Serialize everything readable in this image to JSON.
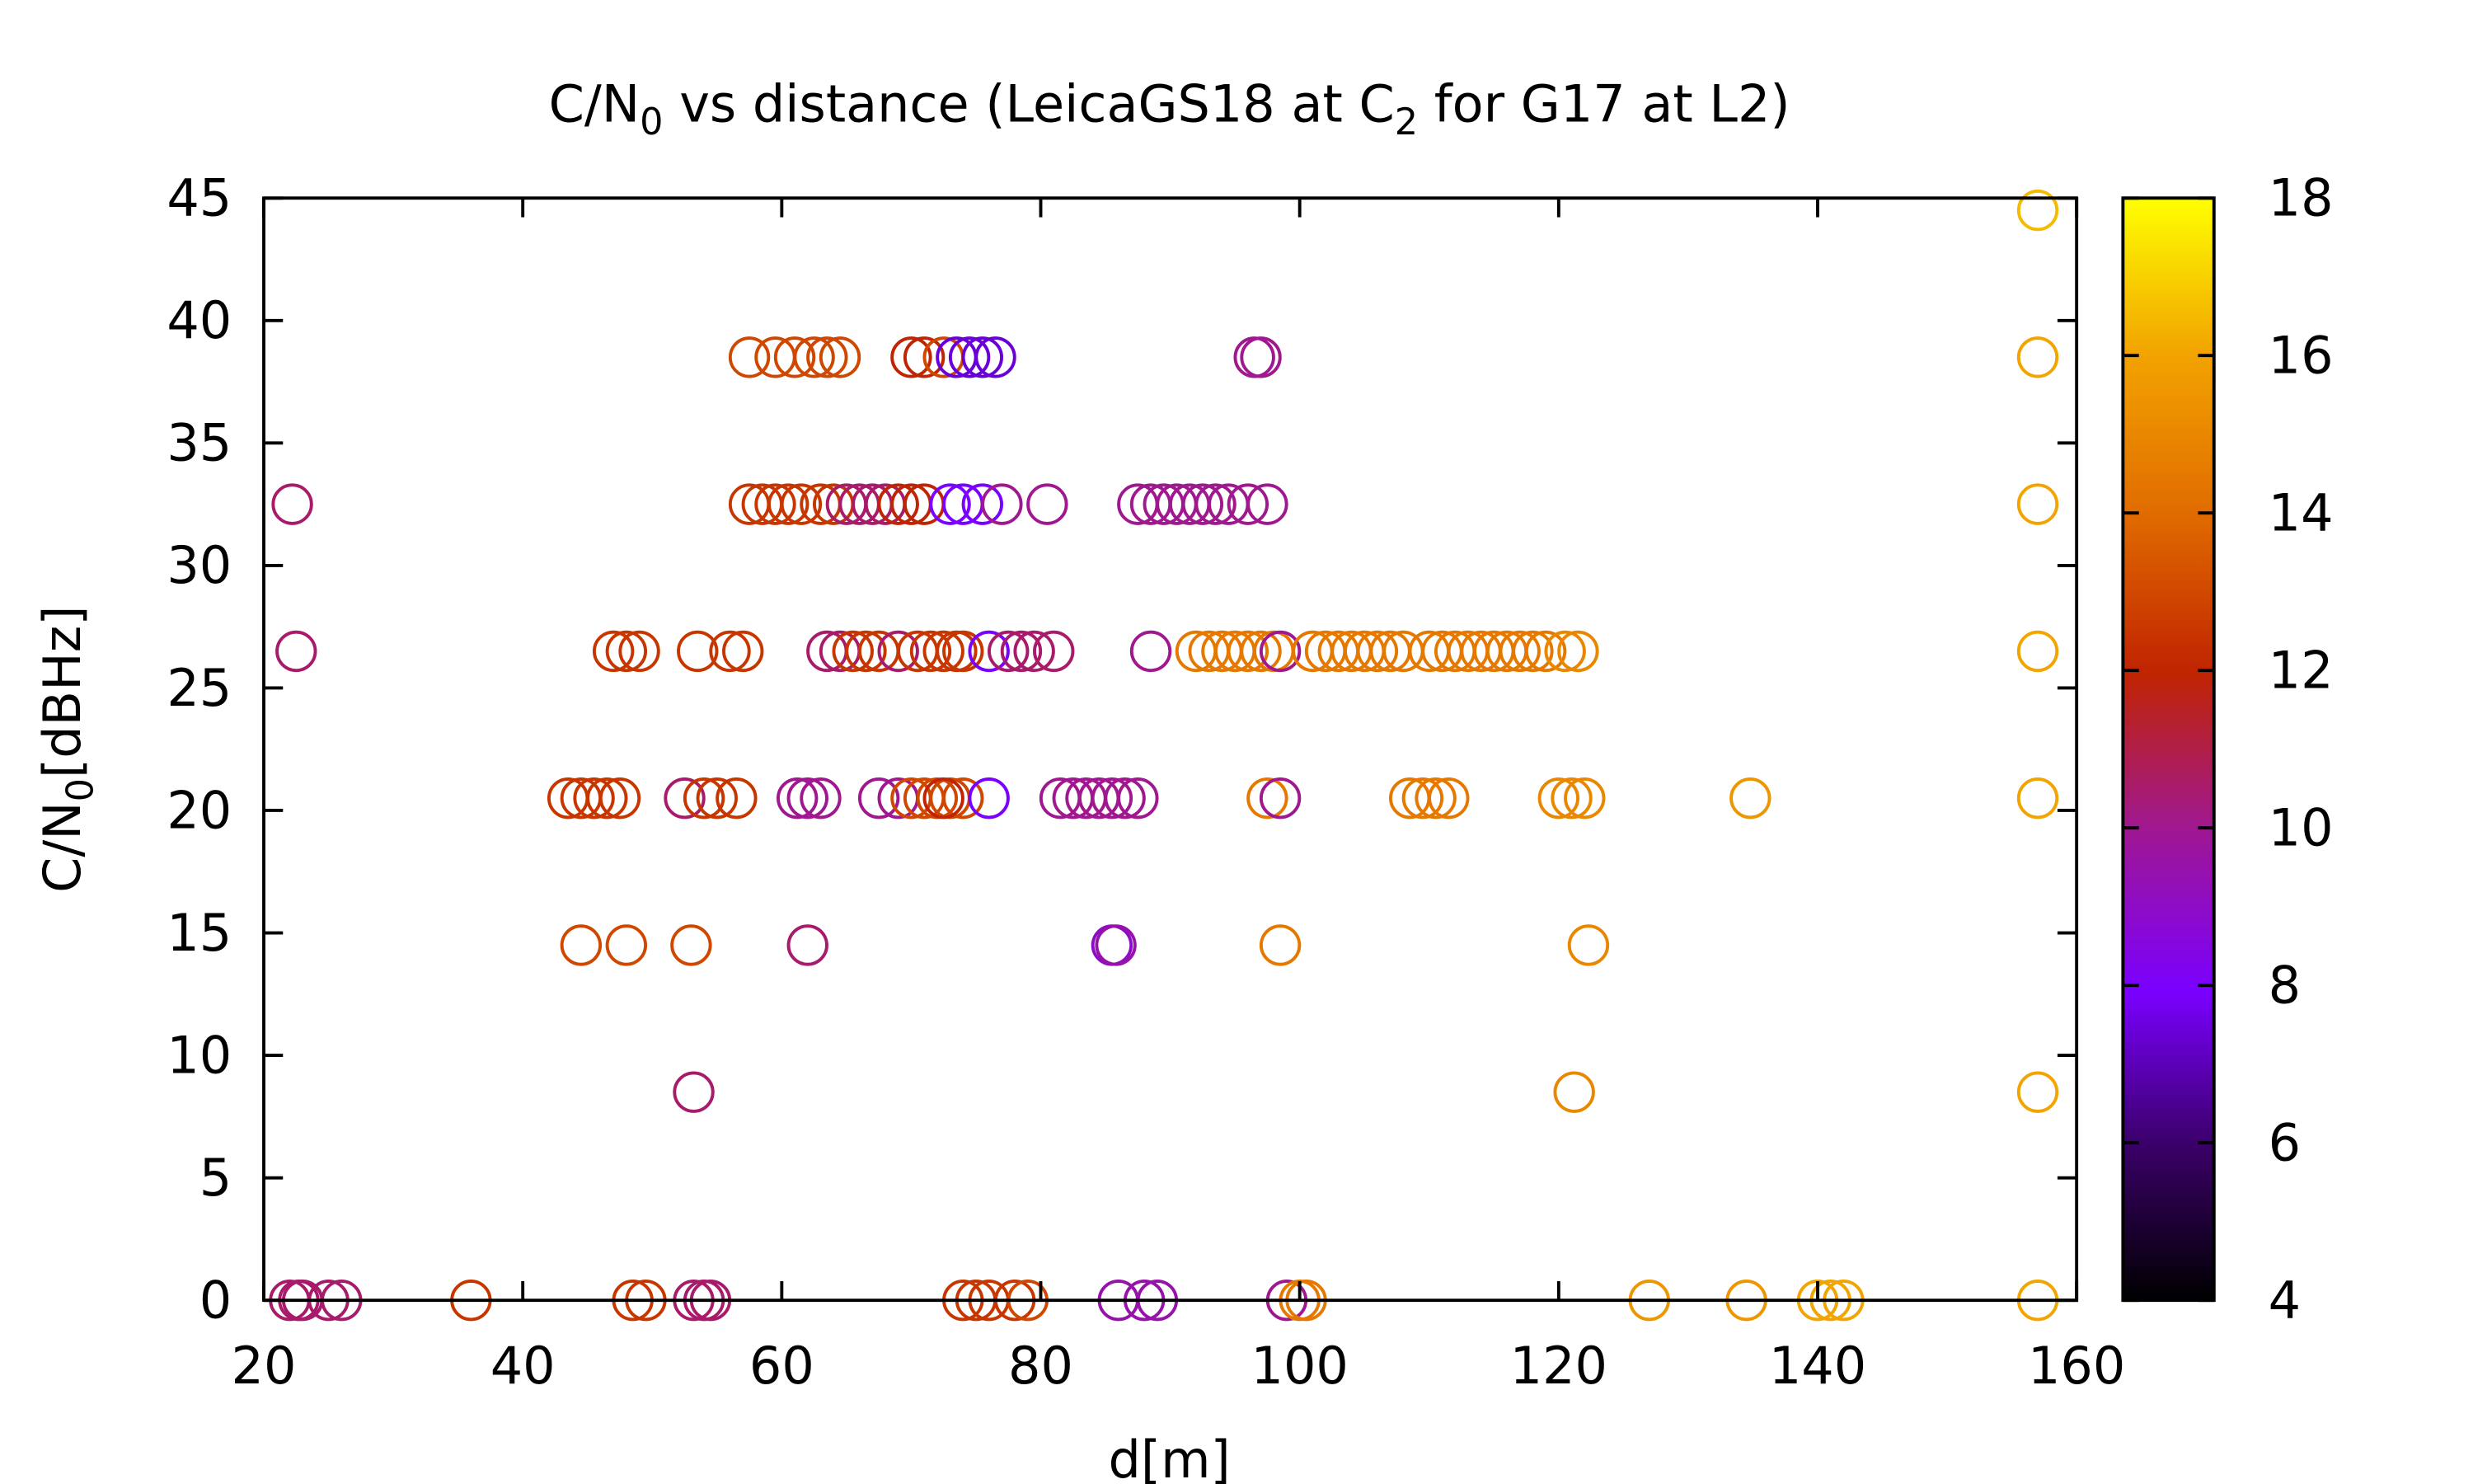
{
  "chart_data": {
    "type": "scatter",
    "title": "C/N0 vs distance (LeicaGS18 at C2 for G17 at L2)",
    "title_parts": {
      "pre": "C/N",
      "sub0": "0",
      "mid": " vs distance (LeicaGS18 at C",
      "sub2": "2",
      "post": " for G17 at L2)"
    },
    "xlabel": "d[m]",
    "ylabel_parts": {
      "pre": "C/N",
      "sub": "0",
      "post": "[dBHz]"
    },
    "xlim": [
      20,
      160
    ],
    "ylim": [
      0,
      45
    ],
    "xticks": [
      20,
      40,
      60,
      80,
      100,
      120,
      140,
      160
    ],
    "yticks": [
      0,
      5,
      10,
      15,
      20,
      25,
      30,
      35,
      40,
      45
    ],
    "colorbar": {
      "min": 4,
      "max": 18,
      "ticks": [
        4,
        6,
        8,
        10,
        12,
        14,
        16,
        18
      ],
      "palette": "black-blue-purple-red-orange-yellow"
    },
    "grid": false,
    "legend": "none",
    "points": [
      [
        22,
        0,
        10.5
      ],
      [
        22.7,
        0,
        10.5
      ],
      [
        23,
        0,
        10.5
      ],
      [
        25,
        0,
        10.5
      ],
      [
        26,
        0,
        10.5
      ],
      [
        36,
        0,
        12.5
      ],
      [
        48.5,
        0,
        12.5
      ],
      [
        49.5,
        0,
        12.5
      ],
      [
        53.2,
        0,
        10.5
      ],
      [
        54,
        0,
        10.5
      ],
      [
        54.5,
        0,
        10.5
      ],
      [
        74,
        0,
        12.5
      ],
      [
        75,
        0,
        12.5
      ],
      [
        76,
        0,
        12.5
      ],
      [
        78,
        0,
        12.5
      ],
      [
        79,
        0,
        13
      ],
      [
        86,
        0,
        9.5
      ],
      [
        88,
        0,
        9.5
      ],
      [
        89,
        0,
        9.5
      ],
      [
        99,
        0,
        10
      ],
      [
        100,
        0,
        14.5
      ],
      [
        100.5,
        0,
        14.5
      ],
      [
        127,
        0,
        15.5
      ],
      [
        134.5,
        0,
        15.5
      ],
      [
        140,
        0,
        16
      ],
      [
        141,
        0,
        16
      ],
      [
        142,
        0,
        16
      ],
      [
        157,
        0,
        16
      ],
      [
        53.2,
        8.5,
        10.5
      ],
      [
        121.2,
        8.5,
        15
      ],
      [
        157,
        8.5,
        16
      ],
      [
        44.5,
        14.5,
        13
      ],
      [
        48,
        14.5,
        13
      ],
      [
        53,
        14.5,
        13
      ],
      [
        62,
        14.5,
        10.5
      ],
      [
        85.5,
        14.5,
        9
      ],
      [
        85.8,
        14.5,
        9.5
      ],
      [
        98.5,
        14.5,
        14.5
      ],
      [
        122.3,
        14.5,
        15
      ],
      [
        43.5,
        20.5,
        12.5
      ],
      [
        44.5,
        20.5,
        12.5
      ],
      [
        45.5,
        20.5,
        12.5
      ],
      [
        46.5,
        20.5,
        12.5
      ],
      [
        47.5,
        20.5,
        12.5
      ],
      [
        52.5,
        20.5,
        10.5
      ],
      [
        54,
        20.5,
        12.5
      ],
      [
        55,
        20.5,
        12.5
      ],
      [
        56.5,
        20.5,
        12.5
      ],
      [
        61.2,
        20.5,
        10
      ],
      [
        62,
        20.5,
        10
      ],
      [
        63,
        20.5,
        10
      ],
      [
        67.5,
        20.5,
        10
      ],
      [
        69,
        20.5,
        10
      ],
      [
        70,
        20.5,
        13
      ],
      [
        71,
        20.5,
        13
      ],
      [
        72,
        20.5,
        13
      ],
      [
        73,
        20.5,
        13
      ],
      [
        74,
        20.5,
        13
      ],
      [
        72.5,
        20.5,
        12
      ],
      [
        76,
        20.5,
        8
      ],
      [
        81.5,
        20.5,
        10
      ],
      [
        82.5,
        20.5,
        10
      ],
      [
        83.5,
        20.5,
        10
      ],
      [
        84.5,
        20.5,
        10
      ],
      [
        85.5,
        20.5,
        10
      ],
      [
        86.5,
        20.5,
        10
      ],
      [
        87.5,
        20.5,
        10
      ],
      [
        97.5,
        20.5,
        14.5
      ],
      [
        98.5,
        20.5,
        10
      ],
      [
        108.5,
        20.5,
        14.5
      ],
      [
        109.5,
        20.5,
        14.5
      ],
      [
        110.5,
        20.5,
        14.5
      ],
      [
        111.5,
        20.5,
        14.5
      ],
      [
        120,
        20.5,
        15
      ],
      [
        121,
        20.5,
        15
      ],
      [
        122,
        20.5,
        15
      ],
      [
        134.8,
        20.5,
        15.5
      ],
      [
        157,
        20.5,
        16
      ],
      [
        22.5,
        26.5,
        10.5
      ],
      [
        47,
        26.5,
        12.5
      ],
      [
        48,
        26.5,
        12.5
      ],
      [
        49,
        26.5,
        12.5
      ],
      [
        53.5,
        26.5,
        12.5
      ],
      [
        56,
        26.5,
        12.5
      ],
      [
        57,
        26.5,
        12.5
      ],
      [
        63.5,
        26.5,
        10.5
      ],
      [
        64.5,
        26.5,
        10.5
      ],
      [
        65.5,
        26.5,
        12.5
      ],
      [
        66.5,
        26.5,
        12.5
      ],
      [
        67.5,
        26.5,
        12.5
      ],
      [
        69,
        26.5,
        10.5
      ],
      [
        70.5,
        26.5,
        12.5
      ],
      [
        71.5,
        26.5,
        12.5
      ],
      [
        72.5,
        26.5,
        12.5
      ],
      [
        73.5,
        26.5,
        12.5
      ],
      [
        74,
        26.5,
        12.5
      ],
      [
        76,
        26.5,
        8
      ],
      [
        77.5,
        26.5,
        10.5
      ],
      [
        78.5,
        26.5,
        10.5
      ],
      [
        79.5,
        26.5,
        10.5
      ],
      [
        81,
        26.5,
        10.5
      ],
      [
        88.5,
        26.5,
        10
      ],
      [
        92,
        26.5,
        14.5
      ],
      [
        93,
        26.5,
        14.5
      ],
      [
        94,
        26.5,
        14.5
      ],
      [
        95,
        26.5,
        14.5
      ],
      [
        96,
        26.5,
        14.5
      ],
      [
        97,
        26.5,
        14.5
      ],
      [
        98,
        26.5,
        14.5
      ],
      [
        98.5,
        26.5,
        10
      ],
      [
        101,
        26.5,
        14.5
      ],
      [
        102,
        26.5,
        14.5
      ],
      [
        103,
        26.5,
        14.5
      ],
      [
        104,
        26.5,
        14.5
      ],
      [
        105,
        26.5,
        14.5
      ],
      [
        106,
        26.5,
        14.5
      ],
      [
        107,
        26.5,
        14.5
      ],
      [
        108,
        26.5,
        14.5
      ],
      [
        110,
        26.5,
        14.5
      ],
      [
        111,
        26.5,
        14.5
      ],
      [
        112,
        26.5,
        14.5
      ],
      [
        113,
        26.5,
        14.5
      ],
      [
        114,
        26.5,
        14.5
      ],
      [
        115,
        26.5,
        14.5
      ],
      [
        116,
        26.5,
        14.5
      ],
      [
        117,
        26.5,
        14.5
      ],
      [
        118,
        26.5,
        14.5
      ],
      [
        119,
        26.5,
        14.5
      ],
      [
        120.5,
        26.5,
        15
      ],
      [
        121.5,
        26.5,
        15
      ],
      [
        157,
        26.5,
        16
      ],
      [
        22.2,
        32.5,
        10.5
      ],
      [
        57.5,
        32.5,
        12.5
      ],
      [
        58.5,
        32.5,
        12.5
      ],
      [
        59.5,
        32.5,
        12.5
      ],
      [
        60.5,
        32.5,
        12.5
      ],
      [
        61.5,
        32.5,
        12.5
      ],
      [
        63,
        32.5,
        12.5
      ],
      [
        64,
        32.5,
        12.5
      ],
      [
        65,
        32.5,
        10.5
      ],
      [
        66,
        32.5,
        10.5
      ],
      [
        67,
        32.5,
        10.5
      ],
      [
        68,
        32.5,
        10.5
      ],
      [
        69,
        32.5,
        12
      ],
      [
        70,
        32.5,
        12
      ],
      [
        71,
        32.5,
        12
      ],
      [
        73,
        32.5,
        8
      ],
      [
        74,
        32.5,
        8
      ],
      [
        75.5,
        32.5,
        8
      ],
      [
        77,
        32.5,
        10
      ],
      [
        80.5,
        32.5,
        10
      ],
      [
        87.5,
        32.5,
        10
      ],
      [
        88.5,
        32.5,
        10
      ],
      [
        89.5,
        32.5,
        10
      ],
      [
        90.5,
        32.5,
        10
      ],
      [
        91.5,
        32.5,
        10
      ],
      [
        92.5,
        32.5,
        10
      ],
      [
        93.5,
        32.5,
        10
      ],
      [
        94.5,
        32.5,
        10
      ],
      [
        96,
        32.5,
        10
      ],
      [
        97.5,
        32.5,
        10
      ],
      [
        157,
        32.5,
        16
      ],
      [
        57.5,
        38.5,
        13
      ],
      [
        59.5,
        38.5,
        13
      ],
      [
        61,
        38.5,
        13
      ],
      [
        62.5,
        38.5,
        13
      ],
      [
        63.5,
        38.5,
        13
      ],
      [
        64.5,
        38.5,
        13
      ],
      [
        70,
        38.5,
        12
      ],
      [
        71,
        38.5,
        12
      ],
      [
        72.5,
        38.5,
        13
      ],
      [
        73.5,
        38.5,
        7.5
      ],
      [
        74.5,
        38.5,
        7.5
      ],
      [
        75.5,
        38.5,
        7.5
      ],
      [
        76.5,
        38.5,
        7.5
      ],
      [
        96.5,
        38.5,
        10
      ],
      [
        97,
        38.5,
        10
      ],
      [
        157,
        38.5,
        16
      ],
      [
        157,
        44.5,
        16.5
      ]
    ]
  }
}
